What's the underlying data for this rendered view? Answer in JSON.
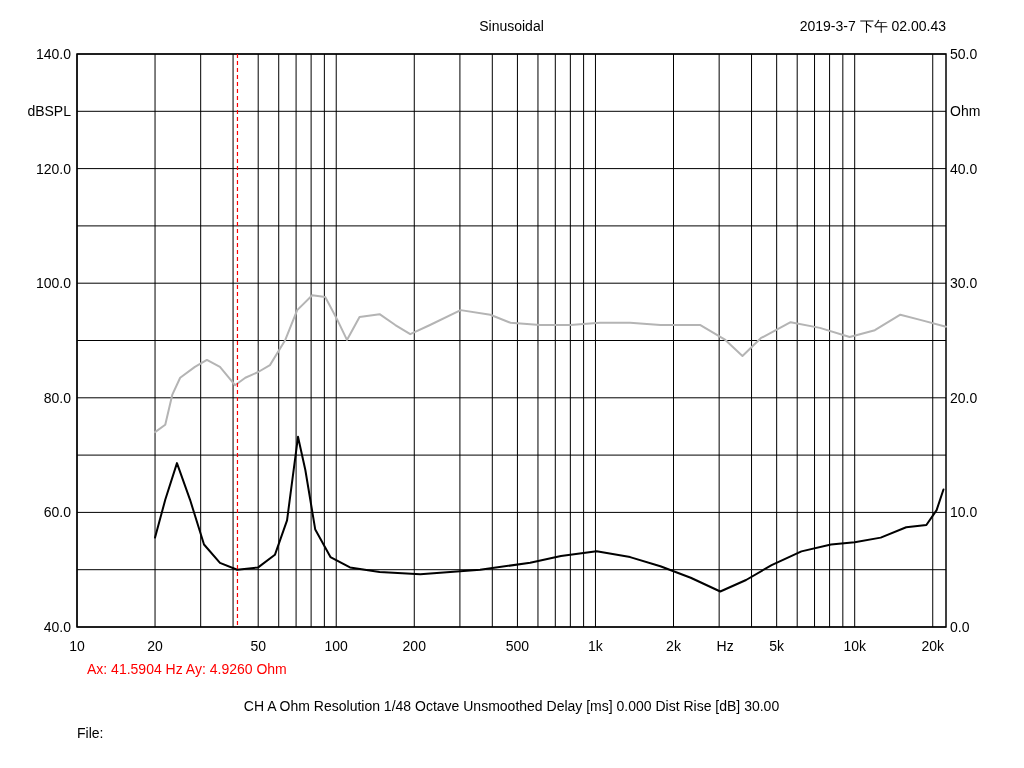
{
  "chart_data": {
    "type": "line",
    "title": "Sinusoidal",
    "xlabel": "Hz",
    "ylabel": "dBSPL",
    "y2label": "Ohm",
    "annotations": [
      "2019-3-7 下午 02.00.43",
      "Ax: 41.5904 Hz   Ay: 4.9260 Ohm",
      "CH A   Ohm   Resolution 1/48 Octave   Unsmoothed   Delay [ms] 0.000   Dist Rise [dB] 30.00",
      "File:"
    ],
    "log": "x",
    "grid": true,
    "xlim": [
      10,
      22500
    ],
    "xticks": [
      10,
      20,
      {
        "value": 30,
        "label": null
      },
      {
        "value": 40,
        "label": null
      },
      50,
      {
        "value": 60,
        "label": null
      },
      {
        "value": 70,
        "label": null
      },
      {
        "value": 80,
        "label": null
      },
      {
        "value": 90,
        "label": null
      },
      100,
      200,
      {
        "value": 300,
        "label": null
      },
      {
        "value": 400,
        "label": null
      },
      500,
      {
        "value": 600,
        "label": null
      },
      {
        "value": 700,
        "label": null
      },
      {
        "value": 800,
        "label": null
      },
      {
        "value": 900,
        "label": null
      },
      {
        "value": 1000,
        "label": "1k"
      },
      {
        "value": 2000,
        "label": "2k"
      },
      {
        "value": 3000,
        "label": null
      },
      {
        "value": 4000,
        "label": null
      },
      {
        "value": 5000,
        "label": "5k"
      },
      {
        "value": 6000,
        "label": null
      },
      {
        "value": 7000,
        "label": null
      },
      {
        "value": 8000,
        "label": null
      },
      {
        "value": 9000,
        "label": null
      },
      {
        "value": 10000,
        "label": "10k"
      },
      {
        "value": 20000,
        "label": "20k"
      }
    ],
    "ylim": [
      40,
      140
    ],
    "yticks": [
      {
        "value": 40,
        "label": "40.0"
      },
      {
        "value": 50,
        "label": null
      },
      {
        "value": 60,
        "label": "60.0"
      },
      {
        "value": 70,
        "label": null
      },
      {
        "value": 80,
        "label": "80.0"
      },
      {
        "value": 90,
        "label": null
      },
      {
        "value": 100,
        "label": "100.0"
      },
      {
        "value": 110,
        "label": null
      },
      {
        "value": 120,
        "label": "120.0"
      },
      {
        "value": 130,
        "label": null
      },
      {
        "value": 140,
        "label": "140.0"
      }
    ],
    "y2lim": [
      0,
      50
    ],
    "y2ticks": [
      {
        "value": 0,
        "label": "0.0"
      },
      {
        "value": 10,
        "label": "10.0"
      },
      {
        "value": 20,
        "label": "20.0"
      },
      {
        "value": 30,
        "label": "30.0"
      },
      {
        "value": 40,
        "label": "40.0"
      },
      {
        "value": 50,
        "label": "50.0"
      }
    ],
    "ref_lines": [
      {
        "axis": "x",
        "value": 41.5904,
        "color": "#ff0000",
        "line_style": "dashed"
      }
    ],
    "series": [
      {
        "color": "#b4b4b4",
        "x": [
          20,
          21.9,
          23.3,
          25,
          28.5,
          31.7,
          35.6,
          40.7,
          44.6,
          50,
          55.5,
          63.6,
          70.7,
          80.8,
          90.7,
          101,
          110,
          123,
          147,
          169,
          193,
          230,
          302,
          393,
          470,
          612,
          800,
          1040,
          1360,
          1780,
          2540,
          3170,
          3690,
          4340,
          5660,
          7340,
          9560,
          11960,
          15000,
          17900,
          22500
        ],
        "values": [
          74.0,
          75.3,
          80.5,
          83.5,
          85.4,
          86.6,
          85.4,
          82.2,
          83.5,
          84.5,
          85.7,
          90.1,
          95.3,
          97.9,
          97.6,
          93.6,
          90.1,
          94.1,
          94.6,
          92.7,
          91.1,
          92.7,
          95.3,
          94.5,
          93.1,
          92.7,
          92.7,
          93.1,
          93.1,
          92.7,
          92.7,
          90.1,
          87.3,
          90.4,
          93.2,
          92.2,
          90.6,
          91.8,
          94.5,
          93.6,
          92.4
        ]
      },
      {
        "color": "#000000",
        "axis": "y2",
        "x": [
          20,
          21.9,
          24.3,
          27.3,
          30.9,
          35.6,
          41.5,
          50,
          58,
          64.6,
          71.2,
          76,
          83,
          95,
          113,
          147,
          211,
          359,
          560,
          736,
          1010,
          1360,
          1780,
          2330,
          3030,
          3810,
          4780,
          6230,
          8100,
          10000,
          12600,
          15800,
          18900,
          20700,
          22000
        ],
        "values": [
          7.8,
          11.1,
          14.3,
          11.1,
          7.2,
          5.6,
          5.0,
          5.2,
          6.3,
          9.3,
          16.6,
          13.7,
          8.5,
          6.1,
          5.2,
          4.8,
          4.6,
          5.0,
          5.6,
          6.2,
          6.6,
          6.1,
          5.3,
          4.3,
          3.1,
          4.1,
          5.4,
          6.6,
          7.2,
          7.4,
          7.8,
          8.7,
          8.9,
          10.2,
          12.0
        ]
      }
    ]
  }
}
